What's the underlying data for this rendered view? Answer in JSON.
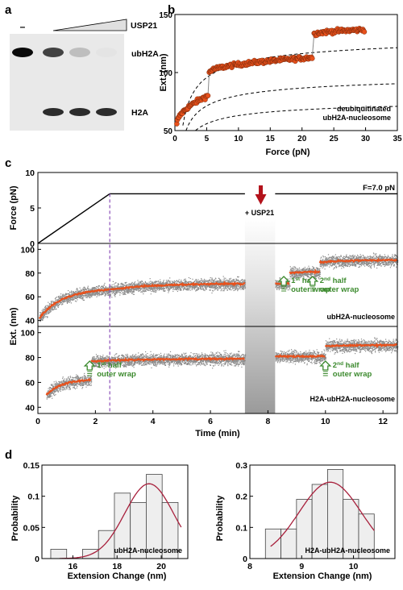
{
  "panels": {
    "a": {
      "letter": "a",
      "enzyme_label": "USP21",
      "minus_label": "–",
      "bands": [
        {
          "label": "ubH2A",
          "intensities": [
            1.0,
            0.75,
            0.2,
            0.03
          ]
        },
        {
          "label": "H2A",
          "intensities": [
            0.0,
            0.85,
            0.85,
            0.85
          ]
        }
      ]
    },
    "b": {
      "letter": "b",
      "ylabel": "Ext. (nm)",
      "xlabel": "Force (pN)",
      "annotation_line1": "deubiquitinated",
      "annotation_line2": "ubH2A-nucleosome"
    },
    "c": {
      "letter": "c",
      "force_ylabel": "Force (pN)",
      "ext_ylabel": "Ext. (nm)",
      "xlabel": "Time (min)",
      "force_label": "F=7.0 pN",
      "usp21_label": "+ USP21",
      "trace1_label": "ubH2A-nucleosome",
      "trace2_label": "H2A-ubH2A-nucleosome",
      "annotations": [
        {
          "pre": "1",
          "sup": "st",
          "post": " half",
          "line2": "outer wrap",
          "trace": 1,
          "t": 8.55
        },
        {
          "pre": "2",
          "sup": "nd",
          "post": " half",
          "line2": "outer wrap",
          "trace": 1,
          "t": 9.55
        },
        {
          "pre": "1",
          "sup": "st",
          "post": " half",
          "line2": "outer wrap",
          "trace": 2,
          "t": 1.8
        },
        {
          "pre": "2",
          "sup": "nd",
          "post": " half",
          "line2": "outer wrap",
          "trace": 2,
          "t": 10.0
        }
      ]
    },
    "d": {
      "letter": "d",
      "ylabel": "Probability",
      "xlabel": "Extension Change (nm)",
      "left_label": "ubH2A-nucleosome",
      "right_label": "H2A-ubH2A-nucleosome"
    }
  },
  "colors": {
    "data_orange": "#e8511c",
    "data_grey": "#8c8c8c",
    "fit_red": "#a8203c",
    "arrow_red": "#b3121b",
    "annot_green": "#3c8a2e",
    "dash_purple": "#8a4fb8",
    "bar_fill": "#eeeeee"
  },
  "chart_data": [
    {
      "id": "b",
      "type": "scatter",
      "xlabel": "Force (pN)",
      "ylabel": "Ext. (nm)",
      "xlim": [
        0,
        35
      ],
      "ylim": [
        50,
        150
      ],
      "xticks": [
        0,
        5,
        10,
        15,
        20,
        25,
        30,
        35
      ],
      "yticks": [
        50,
        100,
        150
      ],
      "legend": "none",
      "series": [
        {
          "segments": [
            {
              "x_range": [
                0.3,
                5.2
              ],
              "y_start": 55,
              "y_end": 80
            },
            {
              "x_range": [
                5.4,
                21.6
              ],
              "y_start": 100,
              "y_end": 113
            },
            {
              "x_range": [
                21.9,
                29.8
              ],
              "y_start": 133,
              "y_end": 137
            }
          ]
        }
      ],
      "wlc_curves": [
        {
          "asymptote": 80
        },
        {
          "asymptote": 102
        },
        {
          "asymptote": 137
        }
      ]
    },
    {
      "id": "c-force",
      "type": "line",
      "ylabel": "Force (pN)",
      "xlim": [
        0,
        12.5
      ],
      "ylim": [
        0,
        10
      ],
      "yticks": [
        0,
        5,
        10
      ],
      "x": [
        0,
        2.5,
        12.5
      ],
      "y": [
        0,
        7.0,
        7.0
      ],
      "gap": [
        7.2,
        8.25
      ],
      "dashed_x": 2.5
    },
    {
      "id": "c-trace1",
      "type": "scatter",
      "xlim": [
        0,
        12.5
      ],
      "ylim": [
        35,
        105
      ],
      "yticks": [
        40,
        60,
        80,
        100
      ],
      "gap": [
        7.2,
        8.25
      ],
      "levels": [
        {
          "t_range": [
            0.05,
            2.5
          ],
          "y_start": 42,
          "y_end": 66
        },
        {
          "t_range": [
            2.5,
            7.2
          ],
          "y_start": 66,
          "y_end": 71
        },
        {
          "t_range": [
            8.25,
            8.75
          ],
          "y_start": 71,
          "y_end": 71
        },
        {
          "t_range": [
            8.75,
            9.8
          ],
          "y_start": 80,
          "y_end": 81
        },
        {
          "t_range": [
            9.8,
            12.5
          ],
          "y_start": 89,
          "y_end": 91
        }
      ]
    },
    {
      "id": "c-trace2",
      "type": "scatter",
      "xlim": [
        0,
        12.5
      ],
      "ylim": [
        35,
        105
      ],
      "yticks": [
        40,
        60,
        80,
        100
      ],
      "xticks": [
        0,
        2,
        4,
        6,
        8,
        10,
        12
      ],
      "gap": [
        7.2,
        8.25
      ],
      "levels": [
        {
          "t_range": [
            0.3,
            1.85
          ],
          "y_start": 50,
          "y_end": 62
        },
        {
          "t_range": [
            1.85,
            7.2
          ],
          "y_start": 77,
          "y_end": 79
        },
        {
          "t_range": [
            8.25,
            10.0
          ],
          "y_start": 81,
          "y_end": 81
        },
        {
          "t_range": [
            10.0,
            12.5
          ],
          "y_start": 89,
          "y_end": 90
        }
      ]
    },
    {
      "id": "d-left",
      "type": "bar",
      "xlabel": "Extension Change (nm)",
      "ylabel": "Probability",
      "xlim": [
        14.6,
        21.2
      ],
      "ylim": [
        0,
        0.15
      ],
      "xticks": [
        16,
        18,
        20
      ],
      "yticks": [
        0,
        0.05,
        0.1,
        0.15
      ],
      "ytick_labels": [
        "0",
        "0.05",
        "0.1",
        "0.15"
      ],
      "bin_width": 0.72,
      "bin_starts": [
        15.0,
        15.72,
        16.44,
        17.16,
        17.88,
        18.6,
        19.32,
        20.04
      ],
      "values": [
        0.015,
        0.0,
        0.015,
        0.045,
        0.105,
        0.09,
        0.135,
        0.09
      ],
      "fit": {
        "mean": 19.45,
        "sd": 1.1,
        "peak": 0.12,
        "x_range": [
          15.4,
          20.9
        ]
      }
    },
    {
      "id": "d-right",
      "type": "bar",
      "xlabel": "Extension Change (nm)",
      "ylabel": "Probability",
      "xlim": [
        8.0,
        10.8
      ],
      "ylim": [
        0,
        0.3
      ],
      "xticks": [
        8,
        9,
        10
      ],
      "yticks": [
        0,
        0.1,
        0.2,
        0.3
      ],
      "ytick_labels": [
        "0",
        "0.1",
        "0.2",
        "0.3"
      ],
      "bin_width": 0.3,
      "bin_starts": [
        8.3,
        8.6,
        8.9,
        9.2,
        9.5,
        9.8,
        10.1
      ],
      "values": [
        0.095,
        0.095,
        0.19,
        0.238,
        0.286,
        0.19,
        0.143
      ],
      "fit": {
        "mean": 9.55,
        "sd": 0.6,
        "peak": 0.245,
        "x_range": [
          8.4,
          10.4
        ]
      }
    }
  ]
}
